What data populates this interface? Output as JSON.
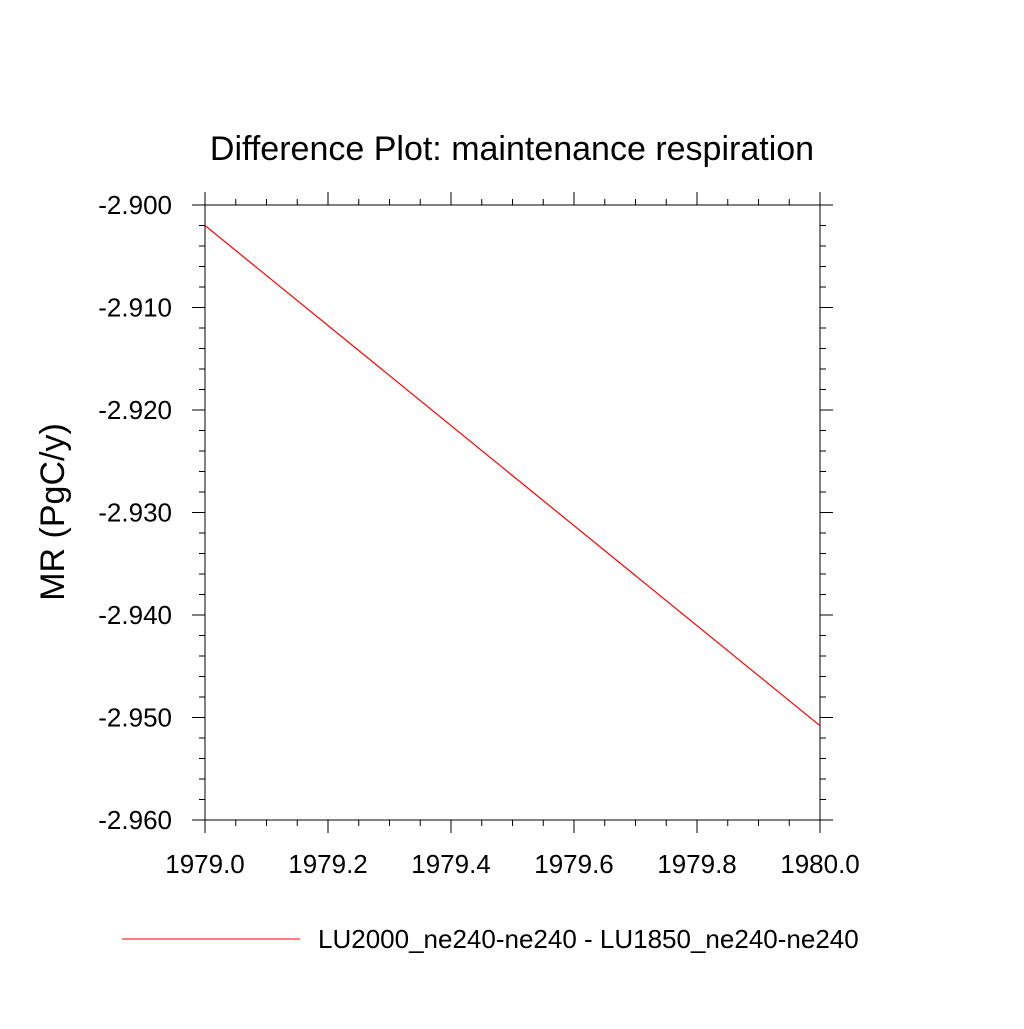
{
  "chart_data": {
    "type": "line",
    "title": "Difference Plot: maintenance respiration",
    "xlabel": "",
    "ylabel": "MR  (PgC/y)",
    "xlim": [
      1979.0,
      1980.0
    ],
    "ylim": [
      -2.96,
      -2.9
    ],
    "xticks": [
      "1979.0",
      "1979.2",
      "1979.4",
      "1979.6",
      "1979.8",
      "1980.0"
    ],
    "yticks": [
      "-2.900",
      "-2.910",
      "-2.920",
      "-2.930",
      "-2.940",
      "-2.950",
      "-2.960"
    ],
    "grid": false,
    "legend_position": "bottom",
    "series": [
      {
        "name": "LU2000_ne240-ne240 - LU1850_ne240-ne240",
        "color": "#ff0000",
        "x": [
          1979.0,
          1980.0
        ],
        "y": [
          -2.902,
          -2.9508
        ]
      }
    ]
  }
}
